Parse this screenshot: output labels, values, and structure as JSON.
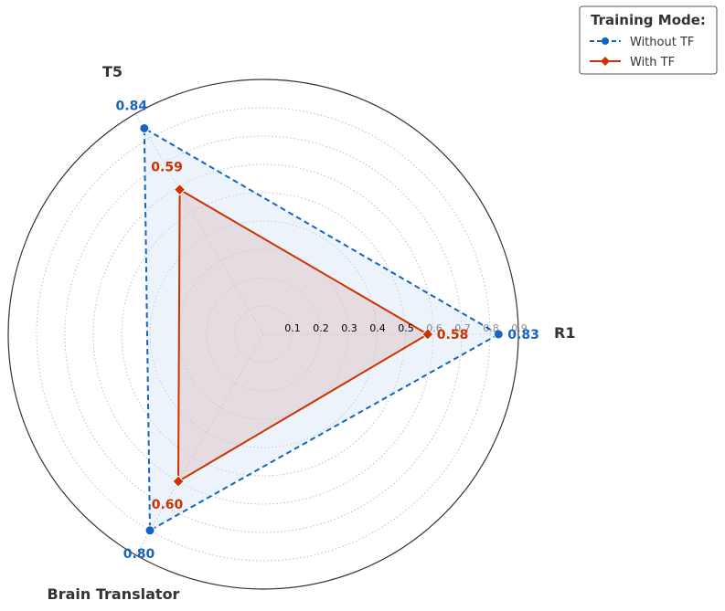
{
  "chart_data": {
    "type": "radar",
    "axes": [
      "R1",
      "T5",
      "Brain Translator"
    ],
    "rmax": 0.9,
    "radial_ticks": [
      "0.1",
      "0.2",
      "0.3",
      "0.4",
      "0.5",
      "0.6",
      "0.7",
      "0.8",
      "0.9"
    ],
    "radial_tick_values": [
      0.1,
      0.2,
      0.3,
      0.4,
      0.5,
      0.6,
      0.7,
      0.8,
      0.9
    ],
    "grid": true,
    "series": [
      {
        "name": "Without TF",
        "values": [
          0.83,
          0.84,
          0.8
        ],
        "labels": [
          "0.83",
          "0.84",
          "0.80"
        ],
        "color": "#1565c0",
        "fill": "#cfe2f3",
        "line_style": "dashed",
        "marker": "circle"
      },
      {
        "name": "With TF",
        "values": [
          0.58,
          0.59,
          0.6
        ],
        "labels": [
          "0.58",
          "0.59",
          "0.60"
        ],
        "color": "#cc3300",
        "fill": "#d9b8b8",
        "line_style": "solid",
        "marker": "diamond"
      }
    ],
    "legend": {
      "title": "Training Mode:",
      "placement": "top-right"
    }
  }
}
